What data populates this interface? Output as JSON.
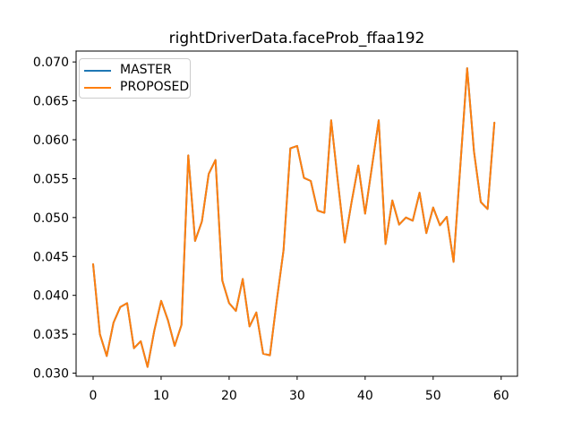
{
  "chart_data": {
    "type": "line",
    "title": "rightDriverData.faceProb_ffaa192",
    "xlabel": "",
    "ylabel": "",
    "grid": false,
    "legend": {
      "position": "upper-left"
    },
    "xlim": [
      -2.5,
      62.4
    ],
    "ylim": [
      0.0296,
      0.0714
    ],
    "x_ticks": [
      0,
      10,
      20,
      30,
      40,
      50,
      60
    ],
    "y_ticks": [
      "0.030",
      "0.035",
      "0.040",
      "0.045",
      "0.050",
      "0.055",
      "0.060",
      "0.065",
      "0.070"
    ],
    "axis_color": "#000000",
    "x": [
      0,
      1,
      2,
      3,
      4,
      5,
      6,
      7,
      8,
      9,
      10,
      11,
      12,
      13,
      14,
      15,
      16,
      17,
      18,
      19,
      20,
      21,
      22,
      23,
      24,
      25,
      26,
      27,
      28,
      29,
      30,
      31,
      32,
      33,
      34,
      35,
      36,
      37,
      38,
      39,
      40,
      41,
      42,
      43,
      44,
      45,
      46,
      47,
      48,
      49,
      50,
      51,
      52,
      53,
      54,
      55,
      56,
      57,
      58,
      59
    ],
    "series": [
      {
        "name": "MASTER",
        "color": "#1f77b4",
        "values": [
          0.044,
          0.035,
          0.0322,
          0.0365,
          0.0385,
          0.039,
          0.0332,
          0.0341,
          0.0308,
          0.0355,
          0.0393,
          0.0368,
          0.0335,
          0.0362,
          0.058,
          0.047,
          0.0495,
          0.0556,
          0.0574,
          0.0419,
          0.039,
          0.038,
          0.0421,
          0.036,
          0.0378,
          0.0325,
          0.0323,
          0.0393,
          0.0458,
          0.0589,
          0.0592,
          0.0551,
          0.0547,
          0.0509,
          0.0506,
          0.0625,
          0.0545,
          0.0468,
          0.052,
          0.0567,
          0.0505,
          0.0565,
          0.0625,
          0.0466,
          0.0522,
          0.0491,
          0.05,
          0.0496,
          0.0532,
          0.048,
          0.0513,
          0.049,
          0.0501,
          0.0443,
          0.0567,
          0.0692,
          0.0585,
          0.052,
          0.0511,
          0.0622
        ]
      },
      {
        "name": "PROPOSED",
        "color": "#ff7f0e",
        "values": [
          0.044,
          0.035,
          0.0322,
          0.0365,
          0.0385,
          0.039,
          0.0332,
          0.0341,
          0.0308,
          0.0355,
          0.0393,
          0.0368,
          0.0335,
          0.0362,
          0.058,
          0.047,
          0.0495,
          0.0556,
          0.0574,
          0.0419,
          0.039,
          0.038,
          0.0421,
          0.036,
          0.0378,
          0.0325,
          0.0323,
          0.0393,
          0.0458,
          0.0589,
          0.0592,
          0.0551,
          0.0547,
          0.0509,
          0.0506,
          0.0625,
          0.0545,
          0.0468,
          0.052,
          0.0567,
          0.0505,
          0.0565,
          0.0625,
          0.0466,
          0.0522,
          0.0491,
          0.05,
          0.0496,
          0.0532,
          0.048,
          0.0513,
          0.049,
          0.0501,
          0.0443,
          0.0567,
          0.0692,
          0.0585,
          0.052,
          0.0511,
          0.0622
        ]
      }
    ]
  }
}
